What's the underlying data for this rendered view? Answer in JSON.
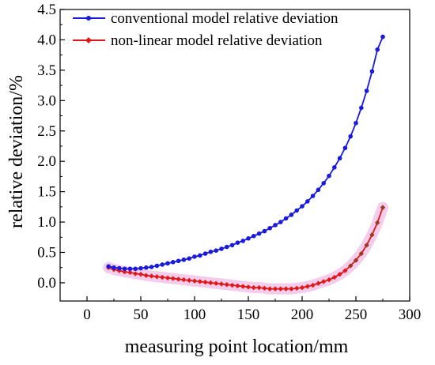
{
  "chart_data": {
    "type": "line",
    "xlabel": "measuring point location/mm",
    "ylabel": "relative deviation/%",
    "xlim": [
      -25,
      300
    ],
    "ylim": [
      -0.3,
      4.5
    ],
    "xticks": [
      0,
      50,
      100,
      150,
      200,
      250,
      300
    ],
    "yticks": [
      0.0,
      0.5,
      1.0,
      1.5,
      2.0,
      2.5,
      3.0,
      3.5,
      4.0,
      4.5
    ],
    "ytick_labels": [
      "0.0",
      "0.5",
      "1.0",
      "1.5",
      "2.0",
      "2.5",
      "3.0",
      "3.5",
      "4.0",
      "4.5"
    ],
    "legend_position": "top-left",
    "grid": false,
    "series": [
      {
        "name": "conventional model relative deviation",
        "color": "#1a1adf",
        "marker": "circle",
        "x": [
          20,
          25,
          30,
          35,
          40,
          45,
          50,
          55,
          60,
          65,
          70,
          75,
          80,
          85,
          90,
          95,
          100,
          105,
          110,
          115,
          120,
          125,
          130,
          135,
          140,
          145,
          150,
          155,
          160,
          165,
          170,
          175,
          180,
          185,
          190,
          195,
          200,
          205,
          210,
          215,
          220,
          225,
          230,
          235,
          240,
          245,
          250,
          255,
          260,
          265,
          270,
          275
        ],
        "y": [
          0.27,
          0.25,
          0.24,
          0.23,
          0.23,
          0.23,
          0.24,
          0.25,
          0.26,
          0.28,
          0.3,
          0.32,
          0.34,
          0.36,
          0.38,
          0.4,
          0.43,
          0.45,
          0.48,
          0.51,
          0.53,
          0.56,
          0.59,
          0.62,
          0.66,
          0.69,
          0.73,
          0.77,
          0.81,
          0.85,
          0.9,
          0.95,
          1.0,
          1.06,
          1.12,
          1.19,
          1.26,
          1.34,
          1.43,
          1.53,
          1.64,
          1.76,
          1.9,
          2.05,
          2.22,
          2.41,
          2.63,
          2.88,
          3.16,
          3.48,
          3.84,
          4.05
        ]
      },
      {
        "name": "non-linear model relative deviation",
        "color": "#e01818",
        "marker": "diamond",
        "x": [
          20,
          25,
          30,
          35,
          40,
          45,
          50,
          55,
          60,
          65,
          70,
          75,
          80,
          85,
          90,
          95,
          100,
          105,
          110,
          115,
          120,
          125,
          130,
          135,
          140,
          145,
          150,
          155,
          160,
          165,
          170,
          175,
          180,
          185,
          190,
          195,
          200,
          205,
          210,
          215,
          220,
          225,
          230,
          235,
          240,
          245,
          250,
          255,
          260,
          265,
          270,
          275
        ],
        "y": [
          0.25,
          0.22,
          0.2,
          0.18,
          0.17,
          0.15,
          0.14,
          0.12,
          0.11,
          0.1,
          0.09,
          0.08,
          0.07,
          0.06,
          0.05,
          0.04,
          0.03,
          0.02,
          0.01,
          0.0,
          -0.01,
          -0.02,
          -0.03,
          -0.04,
          -0.05,
          -0.06,
          -0.07,
          -0.08,
          -0.08,
          -0.09,
          -0.1,
          -0.1,
          -0.1,
          -0.1,
          -0.1,
          -0.09,
          -0.08,
          -0.06,
          -0.04,
          -0.01,
          0.02,
          0.05,
          0.09,
          0.14,
          0.2,
          0.28,
          0.37,
          0.48,
          0.62,
          0.79,
          0.99,
          1.24
        ]
      }
    ]
  }
}
